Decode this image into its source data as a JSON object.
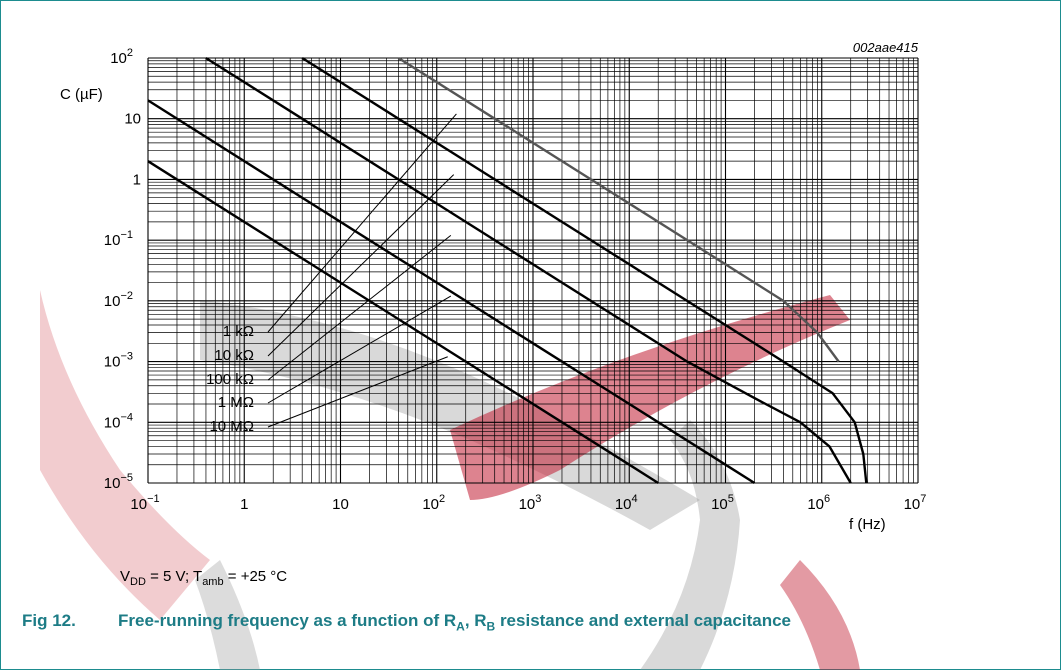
{
  "chart_data": {
    "type": "line",
    "code": "002aae415",
    "ylabel": "C (µF)",
    "xlabel": "f (Hz)",
    "x_scale": "log",
    "y_scale": "log",
    "xlim": [
      0.1,
      10000000
    ],
    "ylim": [
      1e-05,
      100
    ],
    "grid": true,
    "x_ticks": [
      {
        "m": "10",
        "e": "−1"
      },
      {
        "m": "1",
        "e": ""
      },
      {
        "m": "10",
        "e": ""
      },
      {
        "m": "10",
        "e": "2"
      },
      {
        "m": "10",
        "e": "3"
      },
      {
        "m": "10",
        "e": "4"
      },
      {
        "m": "10",
        "e": "5"
      },
      {
        "m": "10",
        "e": "6"
      },
      {
        "m": "10",
        "e": "7"
      }
    ],
    "y_ticks": [
      {
        "m": "10",
        "e": "−5"
      },
      {
        "m": "10",
        "e": "−4"
      },
      {
        "m": "10",
        "e": "−3"
      },
      {
        "m": "10",
        "e": "−2"
      },
      {
        "m": "10",
        "e": "−1"
      },
      {
        "m": "1",
        "e": ""
      },
      {
        "m": "10",
        "e": ""
      },
      {
        "m": "10",
        "e": "2"
      }
    ],
    "series": [
      {
        "name": "1 kΩ",
        "color": "#000000",
        "points": [
          [
            0.4,
            100
          ],
          [
            4,
            10
          ],
          [
            40,
            1
          ],
          [
            400,
            0.1
          ],
          [
            4000,
            0.01
          ],
          [
            40000,
            0.001
          ],
          [
            200000,
            0.00025
          ],
          [
            600000,
            0.0001
          ],
          [
            1200000,
            4e-05
          ],
          [
            2000000,
            1e-05
          ]
        ]
      },
      {
        "name": "10 kΩ",
        "color": "#000000",
        "points": [
          [
            4,
            100
          ],
          [
            40,
            10
          ],
          [
            400,
            1
          ],
          [
            4000,
            0.1
          ],
          [
            40000,
            0.01
          ],
          [
            400000,
            0.001
          ],
          [
            1300000,
            0.0003
          ],
          [
            2200000,
            0.0001
          ],
          [
            2700000,
            3e-05
          ],
          [
            2900000,
            1e-05
          ]
        ]
      },
      {
        "name": "100 kΩ",
        "color": "#555555",
        "points": [
          [
            40,
            100
          ],
          [
            400,
            10
          ],
          [
            4000,
            1
          ],
          [
            40000,
            0.1
          ],
          [
            400000,
            0.01
          ],
          [
            900000,
            0.003
          ],
          [
            1500000,
            0.001
          ]
        ]
      },
      {
        "name": "1 MΩ",
        "color": "#000000",
        "points": [
          [
            0.1,
            20
          ],
          [
            100,
            0.02
          ],
          [
            1000,
            0.002
          ],
          [
            10000,
            0.0002
          ],
          [
            100000,
            2e-05
          ],
          [
            200000,
            1e-05
          ]
        ]
      },
      {
        "name": "10 MΩ",
        "color": "#000000",
        "points": [
          [
            0.1,
            2
          ],
          [
            10000,
            2e-05
          ],
          [
            20000,
            1e-05
          ]
        ]
      }
    ],
    "annotations": [
      {
        "label": "1 kΩ",
        "target": [
          160,
          12
        ]
      },
      {
        "label": "10 kΩ",
        "target": [
          150,
          1.2
        ]
      },
      {
        "label": "100 kΩ",
        "target": [
          140,
          0.12
        ]
      },
      {
        "label": "1 MΩ",
        "target": [
          140,
          0.012
        ]
      },
      {
        "label": "10 MΩ",
        "target": [
          130,
          0.0012
        ]
      }
    ]
  },
  "conditions": {
    "vdd": "V",
    "vdd_sub": "DD",
    "vdd_val": " = 5 V; T",
    "t_sub": "amb",
    "t_val": " = +25 °C"
  },
  "caption": {
    "number": "Fig 12.",
    "text_a": "Free-running frequency as a function of R",
    "sub_a": "A",
    "text_b": ", R",
    "sub_b": "B",
    "text_c": " resistance and external capacitance"
  }
}
